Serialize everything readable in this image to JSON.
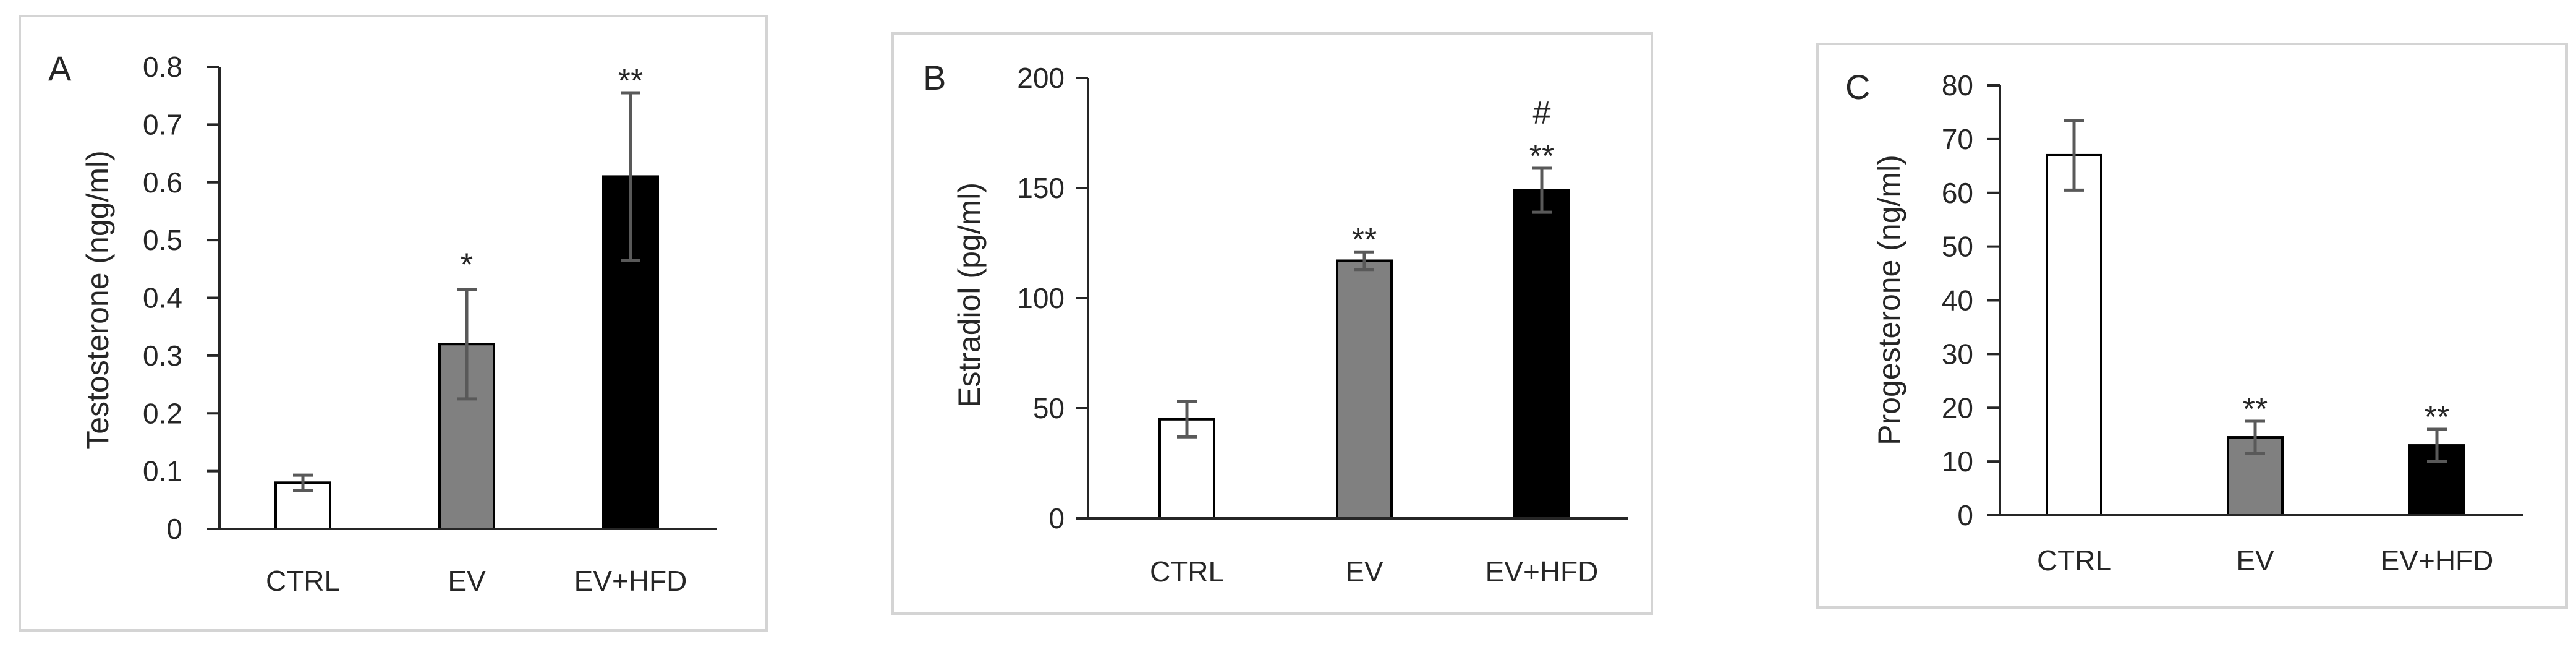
{
  "chart_data": [
    {
      "type": "bar",
      "panel": "A",
      "ylabel": "Testosterone (ngg/ml)",
      "categories": [
        "CTRL",
        "EV",
        "EV+HFD"
      ],
      "values": [
        0.08,
        0.32,
        0.61
      ],
      "error": [
        0.013,
        0.095,
        0.145
      ],
      "significance": [
        "",
        "*",
        "**"
      ],
      "bar_colors": [
        "#ffffff",
        "#808080",
        "#000000"
      ],
      "ylim": [
        0,
        0.8
      ],
      "yticks": [
        "0",
        "0.1",
        "0.2",
        "0.3",
        "0.4",
        "0.5",
        "0.6",
        "0.7",
        "0.8"
      ],
      "grid": false
    },
    {
      "type": "bar",
      "panel": "B",
      "ylabel": "Estradiol (pg/ml)",
      "categories": [
        "CTRL",
        "EV",
        "EV+HFD"
      ],
      "values": [
        45,
        117,
        149
      ],
      "error": [
        8,
        4,
        10
      ],
      "significance": [
        "",
        "**",
        "**"
      ],
      "extra_marks": [
        "",
        "",
        "#"
      ],
      "bar_colors": [
        "#ffffff",
        "#808080",
        "#000000"
      ],
      "ylim": [
        0,
        200
      ],
      "yticks": [
        "0",
        "50",
        "100",
        "150",
        "200"
      ],
      "grid": false
    },
    {
      "type": "bar",
      "panel": "C",
      "ylabel": "Progesterone (ng/ml)",
      "categories": [
        "CTRL",
        "EV",
        "EV+HFD"
      ],
      "values": [
        67,
        14.5,
        13
      ],
      "error": [
        6.5,
        3,
        3
      ],
      "significance": [
        "",
        "**",
        "**"
      ],
      "bar_colors": [
        "#ffffff",
        "#808080",
        "#000000"
      ],
      "ylim": [
        0,
        80
      ],
      "yticks": [
        "0",
        "10",
        "20",
        "30",
        "40",
        "50",
        "60",
        "70",
        "80"
      ],
      "grid": false
    }
  ]
}
